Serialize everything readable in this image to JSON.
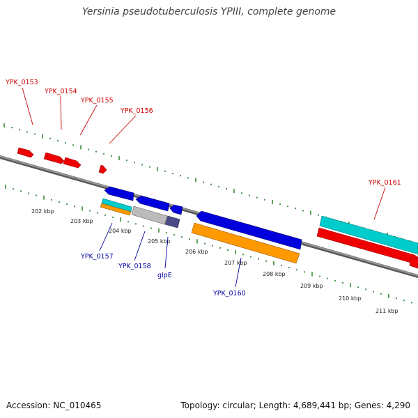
{
  "title": "Yersinia pseudotuberculosis YPIII, complete genome",
  "footer": {
    "accession": "Accession: NC_010465",
    "topology": "Topology: circular; Length: 4,689,441 bp; Genes: 4,290"
  },
  "colors": {
    "backbone": "#808080",
    "ticks": "#1a7a1a",
    "forward_label": "#cc0000",
    "reverse_label": "#00009a",
    "cds_red": "#ee0000",
    "cds_blue": "#0000dd",
    "cds_cyan": "#00cccc",
    "cds_orange": "#ff9900",
    "cds_grey": "#bbbbbb",
    "cds_slate": "#4a4a88"
  },
  "scale": {
    "labels": [
      "202 kbp",
      "203 kbp",
      "204 kbp",
      "205 kbp",
      "206 kbp",
      "207 kbp",
      "208 kbp",
      "209 kbp",
      "210 kbp",
      "211 kbp"
    ]
  },
  "forward_labels": [
    "YPK_0153",
    "YPK_0154",
    "YPK_0155",
    "YPK_0156",
    "YPK_0161"
  ],
  "reverse_labels": [
    "YPK_0157",
    "YPK_0158",
    "glpE",
    "YPK_0160"
  ]
}
